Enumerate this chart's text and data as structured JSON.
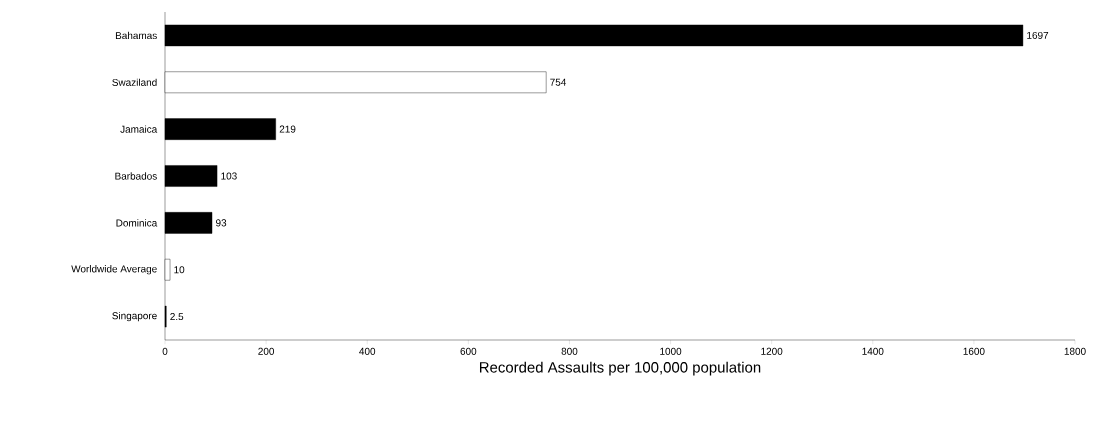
{
  "chart_data": {
    "type": "bar",
    "orientation": "horizontal",
    "xlabel": "Recorded Assaults per 100,000 population",
    "categories": [
      "Bahamas",
      "Swaziland",
      "Jamaica",
      "Barbados",
      "Dominica",
      "Worldwide Average",
      "Singapore"
    ],
    "values": [
      1697,
      754,
      219,
      103,
      93,
      10,
      2.5
    ],
    "colors": [
      "#000000",
      "#ffffff",
      "#000000",
      "#000000",
      "#000000",
      "#ffffff",
      "#000000"
    ],
    "xlim": [
      0,
      1800
    ],
    "xticks": [
      0,
      200,
      400,
      600,
      800,
      1000,
      1200,
      1400,
      1600,
      1800
    ],
    "data_labels": true
  }
}
